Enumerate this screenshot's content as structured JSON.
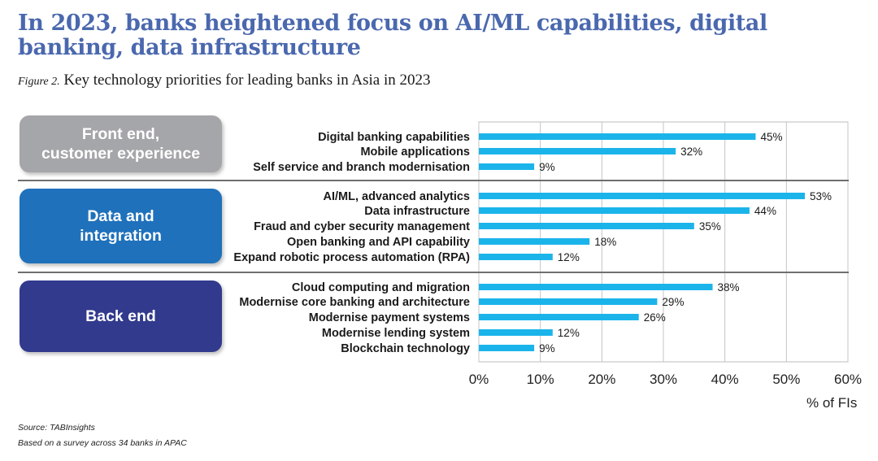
{
  "title": "In 2023, banks heightened focus on AI/ML capabilities, digital banking, data infrastructure",
  "figure_label": "Figure 2.",
  "subtitle": "Key technology priorities for leading banks in Asia in 2023",
  "unit_label": "% of FIs",
  "source": "Source: TABInsights",
  "note": "Based on a survey across 34 banks in APAC",
  "colors": {
    "title": "#4a68ae",
    "bar": "#1bb4ea",
    "front_end": "#a5a6a9",
    "data_integration": "#1f71bb",
    "back_end": "#313a8d"
  },
  "groups": [
    {
      "label": "Front end,\ncustomer experience"
    },
    {
      "label": "Data and\nintegration"
    },
    {
      "label": "Back end"
    }
  ],
  "chart_data": {
    "type": "bar",
    "orientation": "horizontal",
    "categories": [
      "Digital banking capabilities",
      "Mobile applications",
      "Self service and branch modernisation",
      "AI/ML, advanced analytics",
      "Data infrastructure",
      "Fraud and cyber security management",
      "Open banking and API capability",
      "Expand robotic process automation (RPA)",
      "Cloud computing and migration",
      "Modernise core banking and architecture",
      "Modernise payment systems",
      "Modernise lending system",
      "Blockchain technology"
    ],
    "values": [
      45,
      32,
      9,
      53,
      44,
      35,
      18,
      12,
      38,
      29,
      26,
      12,
      9
    ],
    "value_labels": [
      "45%",
      "32%",
      "9%",
      "53%",
      "44%",
      "35%",
      "18%",
      "12%",
      "38%",
      "29%",
      "26%",
      "12%",
      "9%"
    ],
    "xlim": [
      0,
      60
    ],
    "x_ticks": [
      "0%",
      "10%",
      "20%",
      "30%",
      "40%",
      "50%",
      "60%"
    ],
    "grid": true,
    "xlabel": "% of FIs"
  }
}
